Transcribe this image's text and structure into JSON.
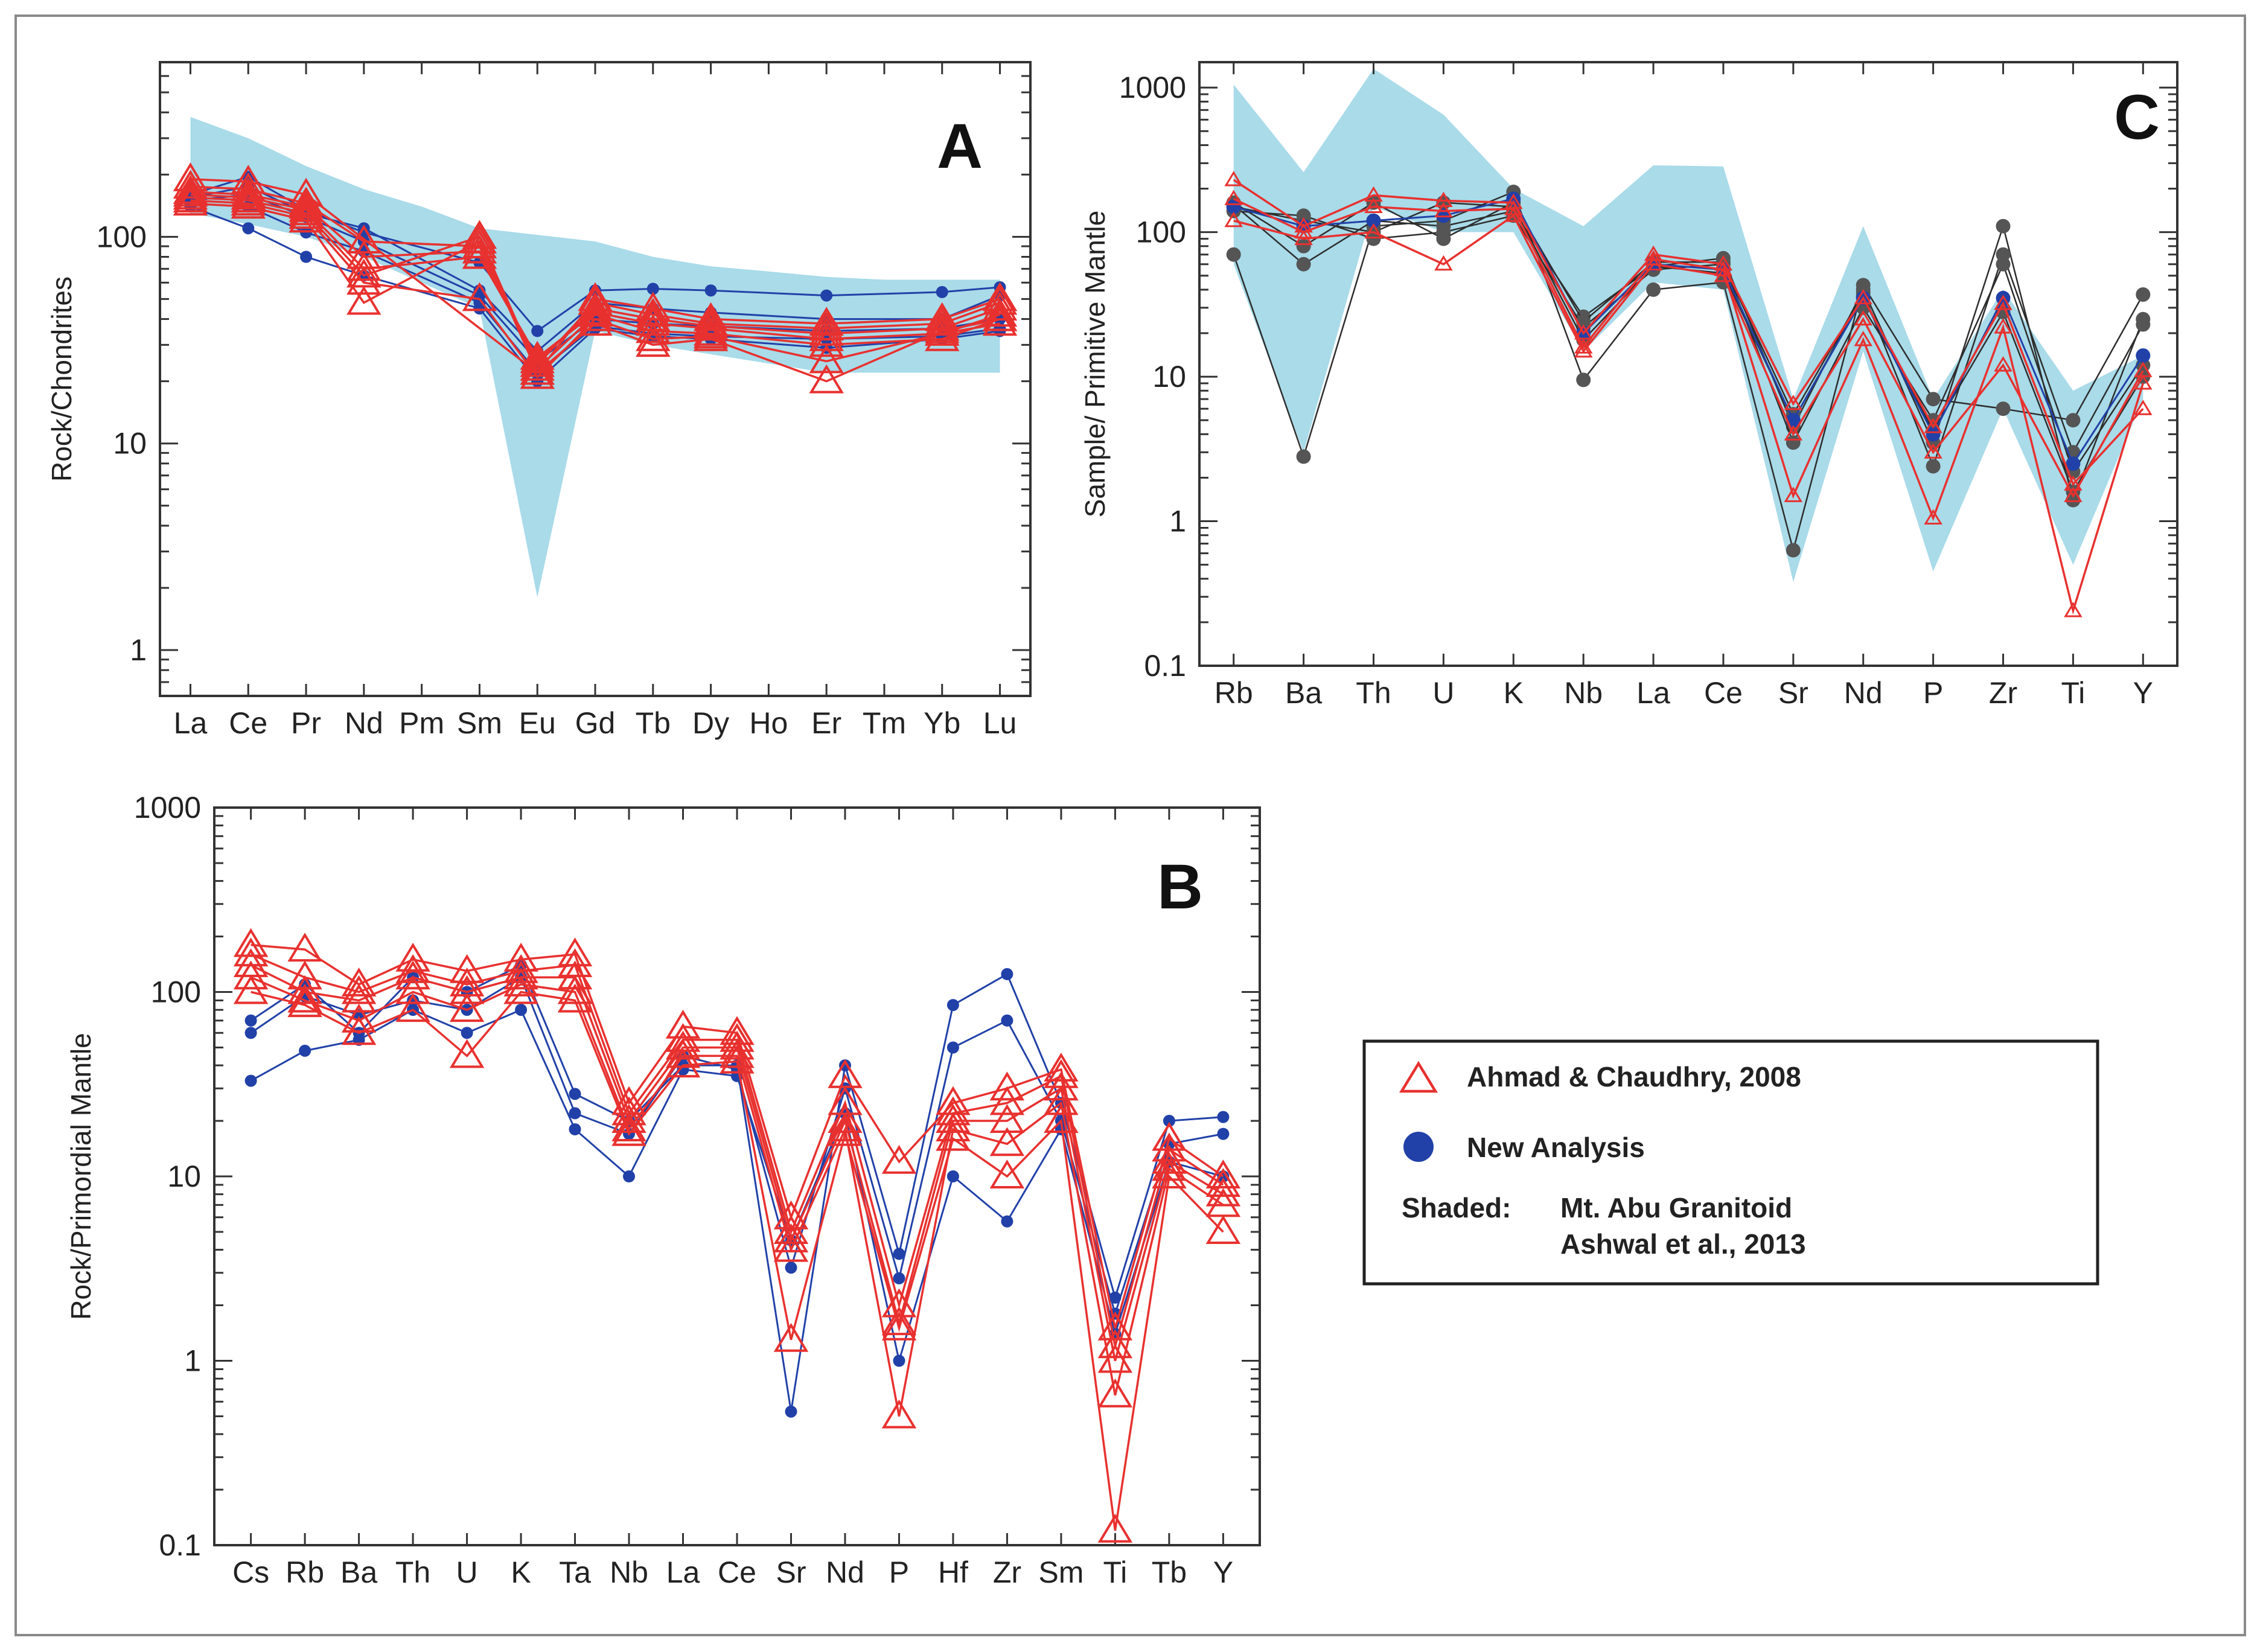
{
  "colors": {
    "ahmad": "#e8312f",
    "new": "#2141a8",
    "shaded": "#a9dbe9",
    "black": "#2d2d2d",
    "grey": "#555555"
  },
  "legend": {
    "ahmad_label": "Ahmad & Chaudhry, 2008",
    "new_label": "New Analysis",
    "shaded_prefix": "Shaded:",
    "shaded_line1": "Mt. Abu Granitoid",
    "shaded_line2": "Ashwal et al., 2013"
  },
  "chart_data": [
    {
      "id": "A",
      "panel_label": "A",
      "type": "line",
      "scale": "log",
      "ylabel": "Rock/Chondrites",
      "ylim": [
        0.6,
        700
      ],
      "yticks": [
        {
          "v": 1,
          "label": "1"
        },
        {
          "v": 10,
          "label": "10"
        },
        {
          "v": 100,
          "label": "100"
        }
      ],
      "categories": [
        "La",
        "Ce",
        "Pr",
        "Nd",
        "Pm",
        "Sm",
        "Eu",
        "Gd",
        "Tb",
        "Dy",
        "Ho",
        "Er",
        "Tm",
        "Yb",
        "Lu"
      ],
      "shaded": {
        "upper": [
          380,
          300,
          220,
          170,
          140,
          110,
          null,
          95,
          80,
          72,
          68,
          64,
          62,
          62,
          62
        ],
        "lower": [
          130,
          115,
          100,
          80,
          null,
          45,
          1.8,
          35,
          30,
          27,
          null,
          22,
          null,
          22,
          22
        ],
        "eu_low": 1.8
      },
      "series": [
        {
          "name": "Ahmad & Chaudhry, 2008",
          "group": "ahmad",
          "values": [
            [
              190,
              185,
              160,
              null,
              null,
              null,
              22,
              50,
              45,
              40,
              null,
              38,
              null,
              40,
              50
            ],
            [
              175,
              170,
              145,
              95,
              null,
              90,
              24,
              48,
              42,
              38,
              null,
              36,
              null,
              38,
              48
            ],
            [
              165,
              160,
              140,
              80,
              null,
              85,
              25,
              45,
              40,
              37,
              null,
              34,
              null,
              36,
              45
            ],
            [
              160,
              155,
              135,
              70,
              null,
              80,
              26,
              43,
              38,
              36,
              null,
              32,
              null,
              34,
              42
            ],
            [
              155,
              150,
              130,
              65,
              null,
              100,
              23,
              42,
              35,
              34,
              null,
              30,
              null,
              32,
              40
            ],
            [
              150,
              145,
              125,
              60,
              null,
              50,
              21,
              40,
              32,
              33,
              null,
              25,
              null,
              34,
              38
            ],
            [
              145,
              140,
              120,
              48,
              null,
              95,
              22,
              38,
              30,
              32,
              null,
              20,
              null,
              35,
              40
            ]
          ]
        },
        {
          "name": "New Analysis",
          "group": "new",
          "values": [
            [
              160,
              195,
              135,
              105,
              null,
              75,
              35,
              55,
              56,
              55,
              null,
              52,
              null,
              54,
              57
            ],
            [
              155,
              175,
              130,
              110,
              null,
              55,
              28,
              48,
              45,
              43,
              null,
              40,
              null,
              40,
              52
            ],
            [
              150,
              160,
              125,
              95,
              null,
              52,
              25,
              40,
              38,
              37,
              null,
              35,
              null,
              36,
              40
            ],
            [
              145,
              140,
              105,
              85,
              null,
              48,
              22,
              37,
              34,
              33,
              null,
              32,
              null,
              33,
              36
            ],
            [
              140,
              110,
              80,
              65,
              null,
              45,
              20,
              36,
              33,
              32,
              null,
              29,
              null,
              32,
              35
            ]
          ]
        }
      ]
    },
    {
      "id": "B",
      "panel_label": "B",
      "type": "line",
      "scale": "log",
      "ylabel": "Rock/Primordial Mantle",
      "ylim": [
        0.1,
        1000
      ],
      "yticks": [
        {
          "v": 0.1,
          "label": "0.1"
        },
        {
          "v": 1,
          "label": "1"
        },
        {
          "v": 10,
          "label": "10"
        },
        {
          "v": 100,
          "label": "100"
        },
        {
          "v": 1000,
          "label": "1000"
        }
      ],
      "categories": [
        "Cs",
        "Rb",
        "Ba",
        "Th",
        "U",
        "K",
        "Ta",
        "Nb",
        "La",
        "Ce",
        "Sr",
        "Nd",
        "P",
        "Hf",
        "Zr",
        "Sm",
        "Ti",
        "Tb",
        "Y"
      ],
      "series": [
        {
          "name": "Ahmad & Chaudhry, 2008",
          "group": "ahmad",
          "values": [
            [
              180,
              170,
              110,
              150,
              130,
              150,
              160,
              25,
              65,
              60,
              6,
              35,
              12,
              25,
              30,
              38,
              1.5,
              16,
              10
            ],
            [
              160,
              120,
              100,
              130,
              110,
              130,
              140,
              22,
              55,
              55,
              5,
              25,
              2,
              22,
              25,
              35,
              1.2,
              14,
              9
            ],
            [
              140,
              100,
              90,
              120,
              100,
              120,
              120,
              20,
              50,
              50,
              4.5,
              20,
              1.6,
              20,
              20,
              30,
              1,
              12,
              8
            ],
            [
              120,
              90,
              70,
              100,
              80,
              110,
              100,
              18,
              45,
              45,
              4,
              18,
              0.5,
              18,
              15,
              25,
              0.65,
              11,
              7
            ],
            [
              100,
              85,
              60,
              80,
              45,
              100,
              90,
              17,
              40,
              42,
              1.3,
              17,
              1.5,
              16,
              10,
              20,
              0.12,
              10,
              5
            ]
          ]
        },
        {
          "name": "New Analysis",
          "group": "new",
          "values": [
            [
              70,
              110,
              60,
              120,
              100,
              140,
              28,
              20,
              40,
              40,
              0.53,
              40,
              3.8,
              85,
              125,
              25,
              2.2,
              20,
              21
            ],
            [
              60,
              95,
              75,
              90,
              80,
              120,
              22,
              17,
              45,
              38,
              3.2,
              30,
              2.8,
              50,
              70,
              20,
              1.8,
              15,
              17
            ],
            [
              33,
              48,
              55,
              80,
              60,
              80,
              18,
              10,
              38,
              35,
              4.5,
              22,
              1,
              10,
              5.7,
              18,
              1.4,
              12,
              10
            ]
          ]
        }
      ]
    },
    {
      "id": "C",
      "panel_label": "C",
      "type": "line",
      "scale": "log",
      "ylabel": "Sample/ Primitive Mantle",
      "ylim": [
        0.1,
        1500
      ],
      "yticks": [
        {
          "v": 0.1,
          "label": "0.1"
        },
        {
          "v": 1,
          "label": "1"
        },
        {
          "v": 10,
          "label": "10"
        },
        {
          "v": 100,
          "label": "100"
        },
        {
          "v": 1000,
          "label": "1000"
        }
      ],
      "categories": [
        "Rb",
        "Ba",
        "Th",
        "U",
        "K",
        "Nb",
        "La",
        "Ce",
        "Sr",
        "Nd",
        "P",
        "Zr",
        "Ti",
        "Y"
      ],
      "shaded": {
        "upper": [
          1050,
          260,
          1350,
          650,
          200,
          110,
          290,
          285,
          7,
          110,
          7,
          40,
          8,
          14
        ],
        "lower": [
          60,
          3,
          150,
          100,
          100,
          15,
          45,
          40,
          0.38,
          15,
          0.45,
          6,
          0.5,
          7
        ]
      },
      "series": [
        {
          "name": "Ahmad & Chaudhry, 2008",
          "group": "ahmad",
          "values": [
            [
              230,
              110,
              180,
              165,
              160,
              20,
              70,
              60,
              6.5,
              35,
              4.5,
              32,
              1.8,
              6
            ],
            [
              170,
              100,
              150,
              140,
              145,
              16,
              65,
              55,
              1.5,
              18,
              1.05,
              22,
              0.24,
              9
            ],
            [
              120,
              90,
              100,
              60,
              130,
              15,
              60,
              50,
              4,
              25,
              3,
              12,
              1.5,
              11
            ]
          ]
        },
        {
          "name": "New Analysis",
          "group": "new",
          "values": [
            [
              150,
              110,
              120,
              130,
              170,
              20,
              60,
              55,
              5,
              35,
              4,
              35,
              2.5,
              14
            ]
          ]
        },
        {
          "name": "Grey",
          "group": "grey",
          "values": [
            [
              70,
              2.8,
              110,
              120,
              190,
              9.5,
              40,
              45,
              0.63,
              43,
              7,
              6,
              5,
              37
            ],
            [
              155,
              60,
              120,
              110,
              140,
              26,
              58,
              66,
              4.5,
              40,
              3.5,
              110,
              1.4,
              25
            ],
            [
              140,
              130,
              90,
              100,
              130,
              22,
              55,
              60,
              5.5,
              38,
              2.4,
              70,
              3,
              23
            ],
            [
              160,
              80,
              160,
              90,
              160,
              24,
              62,
              62,
              3.5,
              30,
              5,
              60,
              2.2,
              12
            ],
            [
              150,
              120,
              100,
              160,
              150,
              18,
              58,
              52,
              5,
              36,
              4.2,
              28,
              1.6,
              10
            ]
          ]
        }
      ]
    }
  ]
}
